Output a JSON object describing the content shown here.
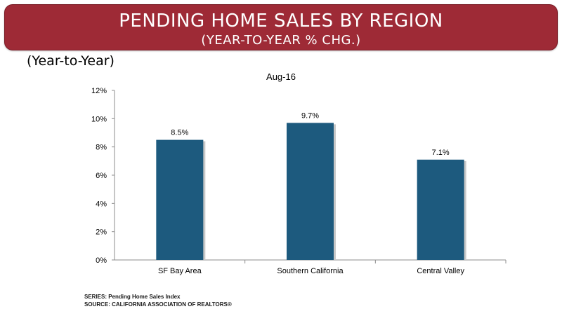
{
  "banner": {
    "title": "PENDING HOME SALES BY REGION",
    "subtitle": "(YEAR-TO-YEAR % CHG.)"
  },
  "units_label": "(Year-to-Year)",
  "footnotes": {
    "series": "SERIES: Pending Home Sales Index",
    "source": "SOURCE:  CALIFORNIA ASSOCIATION OF REALTORS®"
  },
  "colors": {
    "banner": "#9e2a36",
    "bar": "#1d5a7e"
  },
  "chart_data": {
    "type": "bar",
    "title": "Aug-16",
    "categories": [
      "SF Bay Area",
      "Southern California",
      "Central Valley"
    ],
    "values": [
      8.5,
      9.7,
      7.1
    ],
    "data_labels": [
      "8.5%",
      "9.7%",
      "7.1%"
    ],
    "ylim": [
      0,
      12
    ],
    "yticks": [
      0,
      2,
      4,
      6,
      8,
      10,
      12
    ],
    "ytick_labels": [
      "0%",
      "2%",
      "4%",
      "6%",
      "8%",
      "10%",
      "12%"
    ],
    "xlabel": "",
    "ylabel": "",
    "grid": false,
    "legend": "none"
  }
}
